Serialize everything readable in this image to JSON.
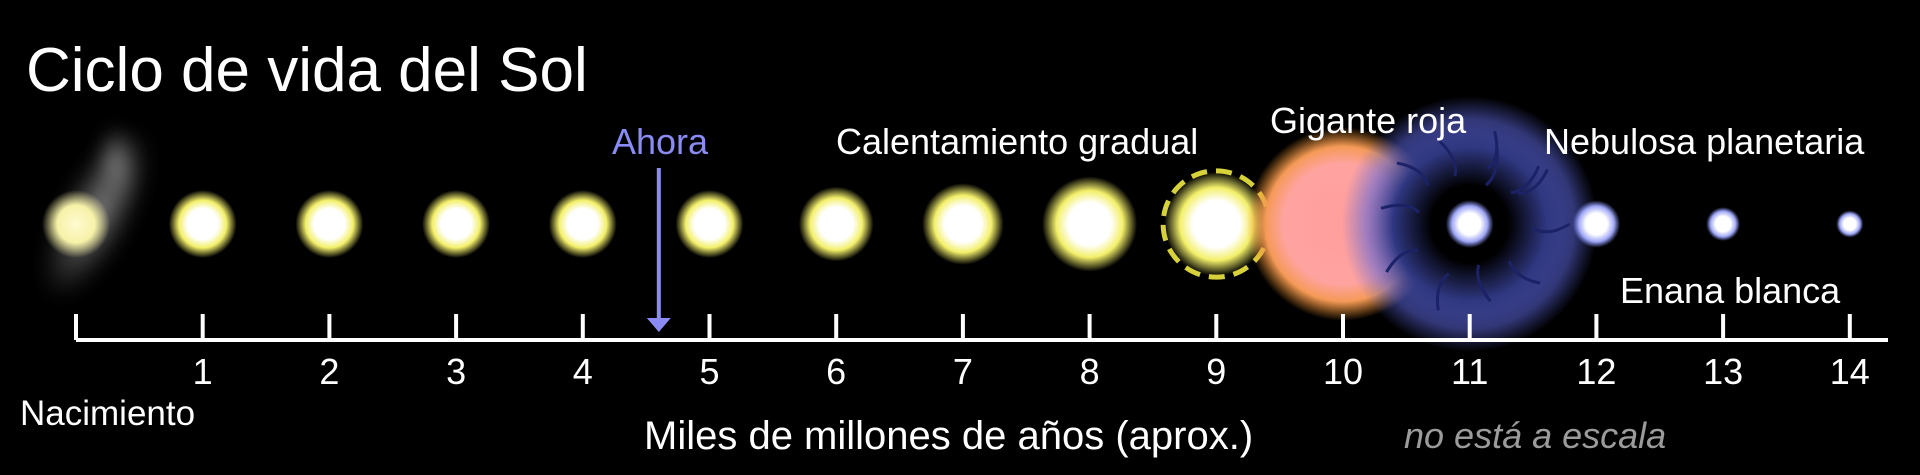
{
  "title": "Ciclo de vida del Sol",
  "labels": {
    "now": "Ahora",
    "gradual_heating": "Calentamiento gradual",
    "red_giant": "Gigante roja",
    "planetary_nebula": "Nebulosa planetaria",
    "white_dwarf": "Enana blanca",
    "birth": "Nacimiento",
    "axis_label": "Miles de millones de años (aprox.)",
    "scale_note": "no está a escala"
  },
  "axis": {
    "min": 0,
    "max": 14,
    "tick_labels": [
      "1",
      "2",
      "3",
      "4",
      "5",
      "6",
      "7",
      "8",
      "9",
      "10",
      "11",
      "12",
      "13",
      "14"
    ]
  },
  "now_marker": 4.6,
  "stages": [
    {
      "age": 0,
      "kind": "protostar",
      "size": 1.0
    },
    {
      "age": 1,
      "kind": "sun",
      "size": 1.0
    },
    {
      "age": 2,
      "kind": "sun",
      "size": 1.0
    },
    {
      "age": 3,
      "kind": "sun",
      "size": 1.0
    },
    {
      "age": 4,
      "kind": "sun",
      "size": 1.0
    },
    {
      "age": 5,
      "kind": "sun",
      "size": 1.0
    },
    {
      "age": 6,
      "kind": "sun",
      "size": 1.1
    },
    {
      "age": 7,
      "kind": "sun",
      "size": 1.2
    },
    {
      "age": 8,
      "kind": "sun",
      "size": 1.4
    },
    {
      "age": 9,
      "kind": "unstable",
      "size": 1.7
    },
    {
      "age": 10,
      "kind": "red-giant",
      "size": 3.0
    },
    {
      "age": 11,
      "kind": "nebula",
      "size": 1.0
    },
    {
      "age": 12,
      "kind": "white-dwarf",
      "size": 0.7
    },
    {
      "age": 13,
      "kind": "white-dwarf",
      "size": 0.5
    },
    {
      "age": 14,
      "kind": "white-dwarf",
      "size": 0.4
    }
  ],
  "colors": {
    "background": "#000000",
    "sun_core": "#ffffff",
    "sun_glow": "#f3f06a",
    "red_giant_core": "#ff9e9e",
    "red_giant_glow": "#f0932a",
    "nebula_glow": "#5a63d6",
    "white_dwarf": "#c9cdfd",
    "now_arrow": "#8b8bf5",
    "axis": "#ffffff",
    "scale_note": "#9b9b9b"
  }
}
